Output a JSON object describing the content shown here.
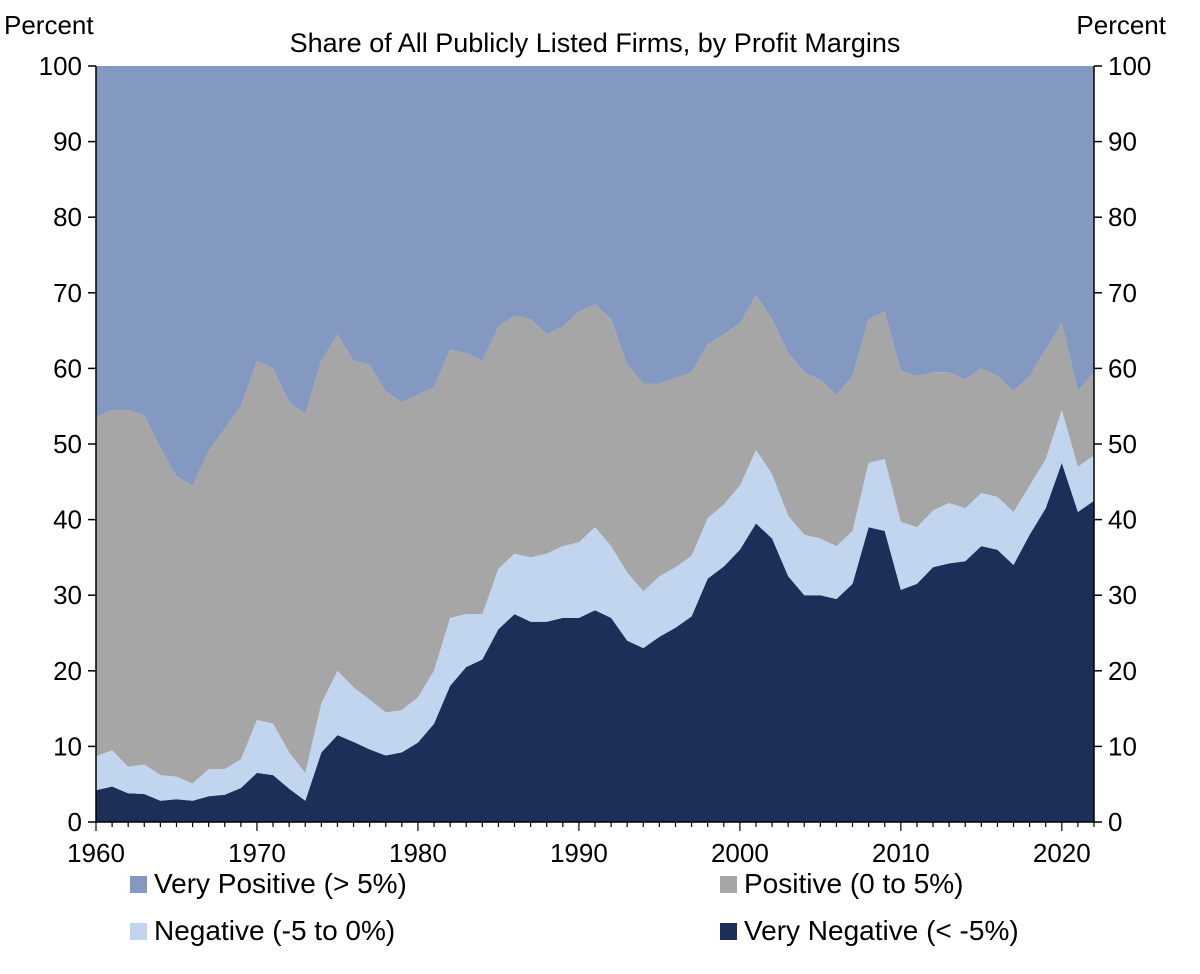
{
  "chart_data": {
    "type": "area",
    "stacked": true,
    "title": "Share of All Publicly Listed Firms, by Profit Margins",
    "ylabel_left": "Percent",
    "ylabel_right": "Percent",
    "xlim": [
      1960,
      2022
    ],
    "ylim": [
      0,
      100
    ],
    "xticks": [
      1960,
      1970,
      1980,
      1990,
      2000,
      2010,
      2020
    ],
    "yticks": [
      0,
      10,
      20,
      30,
      40,
      50,
      60,
      70,
      80,
      90,
      100
    ],
    "legend_position": "bottom",
    "x": [
      1960,
      1961,
      1962,
      1963,
      1964,
      1965,
      1966,
      1967,
      1968,
      1969,
      1970,
      1971,
      1972,
      1973,
      1974,
      1975,
      1976,
      1977,
      1978,
      1979,
      1980,
      1981,
      1982,
      1983,
      1984,
      1985,
      1986,
      1987,
      1988,
      1989,
      1990,
      1991,
      1992,
      1993,
      1994,
      1995,
      1996,
      1997,
      1998,
      1999,
      2000,
      2001,
      2002,
      2003,
      2004,
      2005,
      2006,
      2007,
      2008,
      2009,
      2010,
      2011,
      2012,
      2013,
      2014,
      2015,
      2016,
      2017,
      2018,
      2019,
      2020,
      2021,
      2022
    ],
    "series": [
      {
        "name": "Very Negative (< -5%)",
        "color": "#1c2f58",
        "values": [
          4.2,
          4.7,
          3.8,
          3.7,
          2.8,
          3.0,
          2.8,
          3.4,
          3.6,
          4.5,
          6.5,
          6.2,
          4.4,
          2.8,
          9.2,
          11.5,
          10.6,
          9.6,
          8.8,
          9.2,
          10.5,
          13.0,
          18.0,
          20.5,
          21.5,
          25.5,
          27.5,
          26.5,
          26.5,
          27.0,
          27.0,
          28.0,
          27.0,
          24.0,
          23.0,
          24.5,
          25.7,
          27.2,
          32.2,
          33.8,
          36.0,
          39.5,
          37.5,
          32.5,
          30.0,
          30.0,
          29.5,
          31.5,
          39.0,
          38.5,
          30.7,
          31.5,
          33.7,
          34.2,
          34.5,
          36.5,
          36.0,
          34.0,
          38.0,
          41.5,
          47.5,
          41.0,
          42.5
        ]
      },
      {
        "name": "Negative (-5 to 0%)",
        "color": "#c1d5ee",
        "values": [
          4.5,
          4.8,
          3.5,
          3.9,
          3.4,
          3.0,
          2.3,
          3.6,
          3.4,
          3.8,
          7.0,
          6.8,
          4.8,
          3.7,
          6.5,
          8.5,
          7.2,
          6.6,
          5.7,
          5.6,
          6.0,
          7.0,
          9.0,
          7.0,
          6.0,
          8.0,
          8.0,
          8.5,
          9.0,
          9.5,
          10.0,
          11.0,
          9.5,
          9.0,
          7.5,
          8.0,
          8.0,
          8.0,
          8.0,
          8.2,
          8.5,
          9.7,
          8.5,
          8.0,
          8.0,
          7.5,
          7.0,
          7.0,
          8.5,
          9.5,
          9.0,
          7.5,
          7.5,
          8.0,
          7.0,
          7.0,
          7.0,
          7.0,
          6.5,
          6.5,
          7.0,
          6.0,
          6.0
        ]
      },
      {
        "name": "Positive (0 to 5%)",
        "color": "#a6a6a6",
        "values": [
          44.8,
          45.0,
          47.2,
          46.2,
          43.3,
          39.7,
          39.4,
          42.1,
          45.0,
          46.7,
          47.5,
          47.0,
          46.3,
          47.5,
          45.3,
          44.5,
          43.2,
          44.3,
          42.5,
          40.7,
          40.0,
          37.5,
          35.5,
          34.5,
          33.5,
          32.0,
          31.5,
          31.5,
          29.0,
          29.0,
          30.5,
          29.5,
          30.0,
          27.5,
          27.5,
          25.5,
          25.0,
          24.3,
          23.0,
          22.5,
          21.5,
          20.5,
          20.5,
          21.5,
          21.5,
          21.0,
          20.0,
          20.5,
          19.0,
          19.5,
          20.0,
          20.0,
          18.3,
          17.3,
          17.0,
          16.5,
          16.0,
          16.0,
          14.5,
          14.5,
          11.5,
          10.0,
          11.0
        ]
      },
      {
        "name": "Very Positive (> 5%)",
        "color": "#8399c2",
        "values": [
          46.5,
          45.5,
          45.5,
          46.2,
          50.5,
          54.3,
          55.5,
          50.9,
          48.0,
          45.0,
          39.0,
          40.0,
          44.5,
          46.0,
          39.0,
          35.5,
          39.0,
          39.5,
          43.0,
          44.5,
          43.5,
          42.5,
          37.5,
          38.0,
          39.0,
          34.5,
          33.0,
          33.5,
          35.5,
          34.5,
          32.5,
          31.5,
          33.5,
          39.5,
          42.0,
          42.0,
          41.3,
          40.5,
          36.8,
          35.5,
          34.0,
          30.3,
          33.5,
          38.0,
          40.5,
          41.5,
          43.5,
          41.0,
          33.5,
          32.5,
          40.3,
          41.0,
          40.5,
          40.5,
          41.5,
          40.0,
          41.0,
          43.0,
          41.0,
          37.5,
          34.0,
          43.0,
          40.5
        ]
      }
    ]
  },
  "legend": [
    {
      "label": "Very Positive (> 5%)",
      "color": "#8399c2"
    },
    {
      "label": "Positive (0 to 5%)",
      "color": "#a6a6a6"
    },
    {
      "label": "Negative (-5 to 0%)",
      "color": "#c1d5ee"
    },
    {
      "label": "Very Negative (< -5%)",
      "color": "#1c2f58"
    }
  ]
}
